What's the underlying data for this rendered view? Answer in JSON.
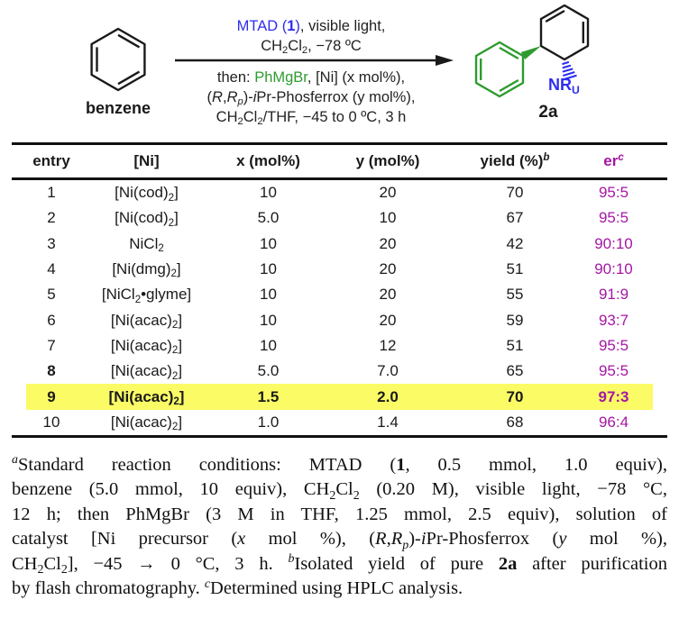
{
  "colors": {
    "accent_blue": "#2D2DF0",
    "accent_green": "#2E9B2E",
    "er_magenta": "#A417A4",
    "highlight_yellow": "#FBFB66"
  },
  "scheme": {
    "reactant_label": "benzene",
    "product_label": "2a",
    "amine": {
      "main": "NR",
      "sub": "U"
    },
    "above": [
      [
        {
          "t": "MTAD (",
          "c": "blue"
        },
        {
          "t": "1",
          "c": "blue b"
        },
        {
          "t": ")",
          "c": "blue"
        },
        {
          "t": ", visible light,"
        }
      ],
      [
        {
          "t": "CH"
        },
        {
          "t": "2",
          "c": "sub"
        },
        {
          "t": "Cl"
        },
        {
          "t": "2",
          "c": "sub"
        },
        {
          "t": ", −78 ºC"
        }
      ]
    ],
    "below": [
      [
        {
          "t": "then: "
        },
        {
          "t": "PhMgBr",
          "c": "green"
        },
        {
          "t": ", [Ni] (x mol%),"
        }
      ],
      [
        {
          "t": "("
        },
        {
          "t": "R",
          "c": "i"
        },
        {
          "t": ","
        },
        {
          "t": "R",
          "c": "i"
        },
        {
          "t": "p",
          "c": "sub i"
        },
        {
          "t": ")-"
        },
        {
          "t": "i",
          "c": "i"
        },
        {
          "t": "Pr-Phosferrox (y mol%),"
        }
      ],
      [
        {
          "t": "CH"
        },
        {
          "t": "2",
          "c": "sub"
        },
        {
          "t": "Cl"
        },
        {
          "t": "2",
          "c": "sub"
        },
        {
          "t": "/THF, −45 to 0 ºC, 3 h"
        }
      ]
    ]
  },
  "table": {
    "headers": [
      [
        {
          "t": "entry"
        }
      ],
      [
        {
          "t": "[Ni]"
        }
      ],
      [
        {
          "t": "x (mol%)"
        }
      ],
      [
        {
          "t": "y (mol%)"
        }
      ],
      [
        {
          "t": "yield (%)"
        },
        {
          "t": "b",
          "c": "sup i"
        }
      ],
      [
        {
          "t": "er",
          "c": "mag"
        },
        {
          "t": "c",
          "c": "mag sup i"
        }
      ]
    ],
    "rows": [
      {
        "entry": "1",
        "ni": [
          {
            "t": "[Ni(cod)"
          },
          {
            "t": "2",
            "c": "sub"
          },
          {
            "t": "]"
          }
        ],
        "x": "10",
        "y": "20",
        "yield": "70",
        "er": "95:5",
        "highlight": false,
        "bold": false,
        "entry_bold": false
      },
      {
        "entry": "2",
        "ni": [
          {
            "t": "[Ni(cod)"
          },
          {
            "t": "2",
            "c": "sub"
          },
          {
            "t": "]"
          }
        ],
        "x": "5.0",
        "y": "10",
        "yield": "67",
        "er": "95:5",
        "highlight": false,
        "bold": false,
        "entry_bold": false
      },
      {
        "entry": "3",
        "ni": [
          {
            "t": "NiCl"
          },
          {
            "t": "2",
            "c": "sub"
          }
        ],
        "x": "10",
        "y": "20",
        "yield": "42",
        "er": "90:10",
        "highlight": false,
        "bold": false,
        "entry_bold": false
      },
      {
        "entry": "4",
        "ni": [
          {
            "t": "[Ni(dmg)"
          },
          {
            "t": "2",
            "c": "sub"
          },
          {
            "t": "]"
          }
        ],
        "x": "10",
        "y": "20",
        "yield": "51",
        "er": "90:10",
        "highlight": false,
        "bold": false,
        "entry_bold": false
      },
      {
        "entry": "5",
        "ni": [
          {
            "t": "[NiCl"
          },
          {
            "t": "2",
            "c": "sub"
          },
          {
            "t": "•glyme]"
          }
        ],
        "x": "10",
        "y": "20",
        "yield": "55",
        "er": "91:9",
        "highlight": false,
        "bold": false,
        "entry_bold": false
      },
      {
        "entry": "6",
        "ni": [
          {
            "t": "[Ni(acac)"
          },
          {
            "t": "2",
            "c": "sub"
          },
          {
            "t": "]"
          }
        ],
        "x": "10",
        "y": "20",
        "yield": "59",
        "er": "93:7",
        "highlight": false,
        "bold": false,
        "entry_bold": false
      },
      {
        "entry": "7",
        "ni": [
          {
            "t": "[Ni(acac)"
          },
          {
            "t": "2",
            "c": "sub"
          },
          {
            "t": "]"
          }
        ],
        "x": "10",
        "y": "12",
        "yield": "51",
        "er": "95:5",
        "highlight": false,
        "bold": false,
        "entry_bold": false
      },
      {
        "entry": "8",
        "ni": [
          {
            "t": "[Ni(acac)"
          },
          {
            "t": "2",
            "c": "sub"
          },
          {
            "t": "]"
          }
        ],
        "x": "5.0",
        "y": "7.0",
        "yield": "65",
        "er": "95:5",
        "highlight": false,
        "bold": false,
        "entry_bold": true
      },
      {
        "entry": "9",
        "ni": [
          {
            "t": "[Ni(acac)"
          },
          {
            "t": "2",
            "c": "sub"
          },
          {
            "t": "]"
          }
        ],
        "x": "1.5",
        "y": "2.0",
        "yield": "70",
        "er": "97:3",
        "highlight": true,
        "bold": true,
        "entry_bold": false
      },
      {
        "entry": "10",
        "ni": [
          {
            "t": "[Ni(acac)"
          },
          {
            "t": "2",
            "c": "sub"
          },
          {
            "t": "]"
          }
        ],
        "x": "1.0",
        "y": "1.4",
        "yield": "68",
        "er": "96:4",
        "highlight": false,
        "bold": false,
        "entry_bold": false
      }
    ]
  },
  "footnote": {
    "lines": [
      [
        {
          "t": "a",
          "c": "sup i"
        },
        {
          "t": "Standard reaction conditions: MTAD ("
        },
        {
          "t": "1",
          "c": "b"
        },
        {
          "t": ", 0.5 mmol, 1.0 equiv),"
        }
      ],
      [
        {
          "t": "benzene (5.0 mmol, 10 equiv), CH"
        },
        {
          "t": "2",
          "c": "sub"
        },
        {
          "t": "Cl"
        },
        {
          "t": "2",
          "c": "sub"
        },
        {
          "t": " (0.20 M), visible light, −78 °C,"
        }
      ],
      [
        {
          "t": "12 h; then PhMgBr (3 M in THF, 1.25 mmol, 2.5 equiv), solution of"
        }
      ],
      [
        {
          "t": "catalyst [Ni precursor ("
        },
        {
          "t": "x",
          "c": "i"
        },
        {
          "t": " mol %), ("
        },
        {
          "t": "R",
          "c": "i"
        },
        {
          "t": ","
        },
        {
          "t": "R",
          "c": "i"
        },
        {
          "t": "p",
          "c": "sub i"
        },
        {
          "t": ")-"
        },
        {
          "t": "i",
          "c": "i"
        },
        {
          "t": "Pr-Phosferrox ("
        },
        {
          "t": "y",
          "c": "i"
        },
        {
          "t": " mol %),"
        }
      ],
      [
        {
          "t": "CH"
        },
        {
          "t": "2",
          "c": "sub"
        },
        {
          "t": "Cl"
        },
        {
          "t": "2",
          "c": "sub"
        },
        {
          "t": "], −45 → 0 °C, 3 h. "
        },
        {
          "t": "b",
          "c": "sup i"
        },
        {
          "t": "Isolated yield of pure "
        },
        {
          "t": "2a",
          "c": "b"
        },
        {
          "t": " after purification"
        }
      ],
      [
        {
          "t": "by flash chromatography. "
        },
        {
          "t": "c",
          "c": "sup i"
        },
        {
          "t": "Determined using HPLC analysis."
        }
      ]
    ]
  }
}
